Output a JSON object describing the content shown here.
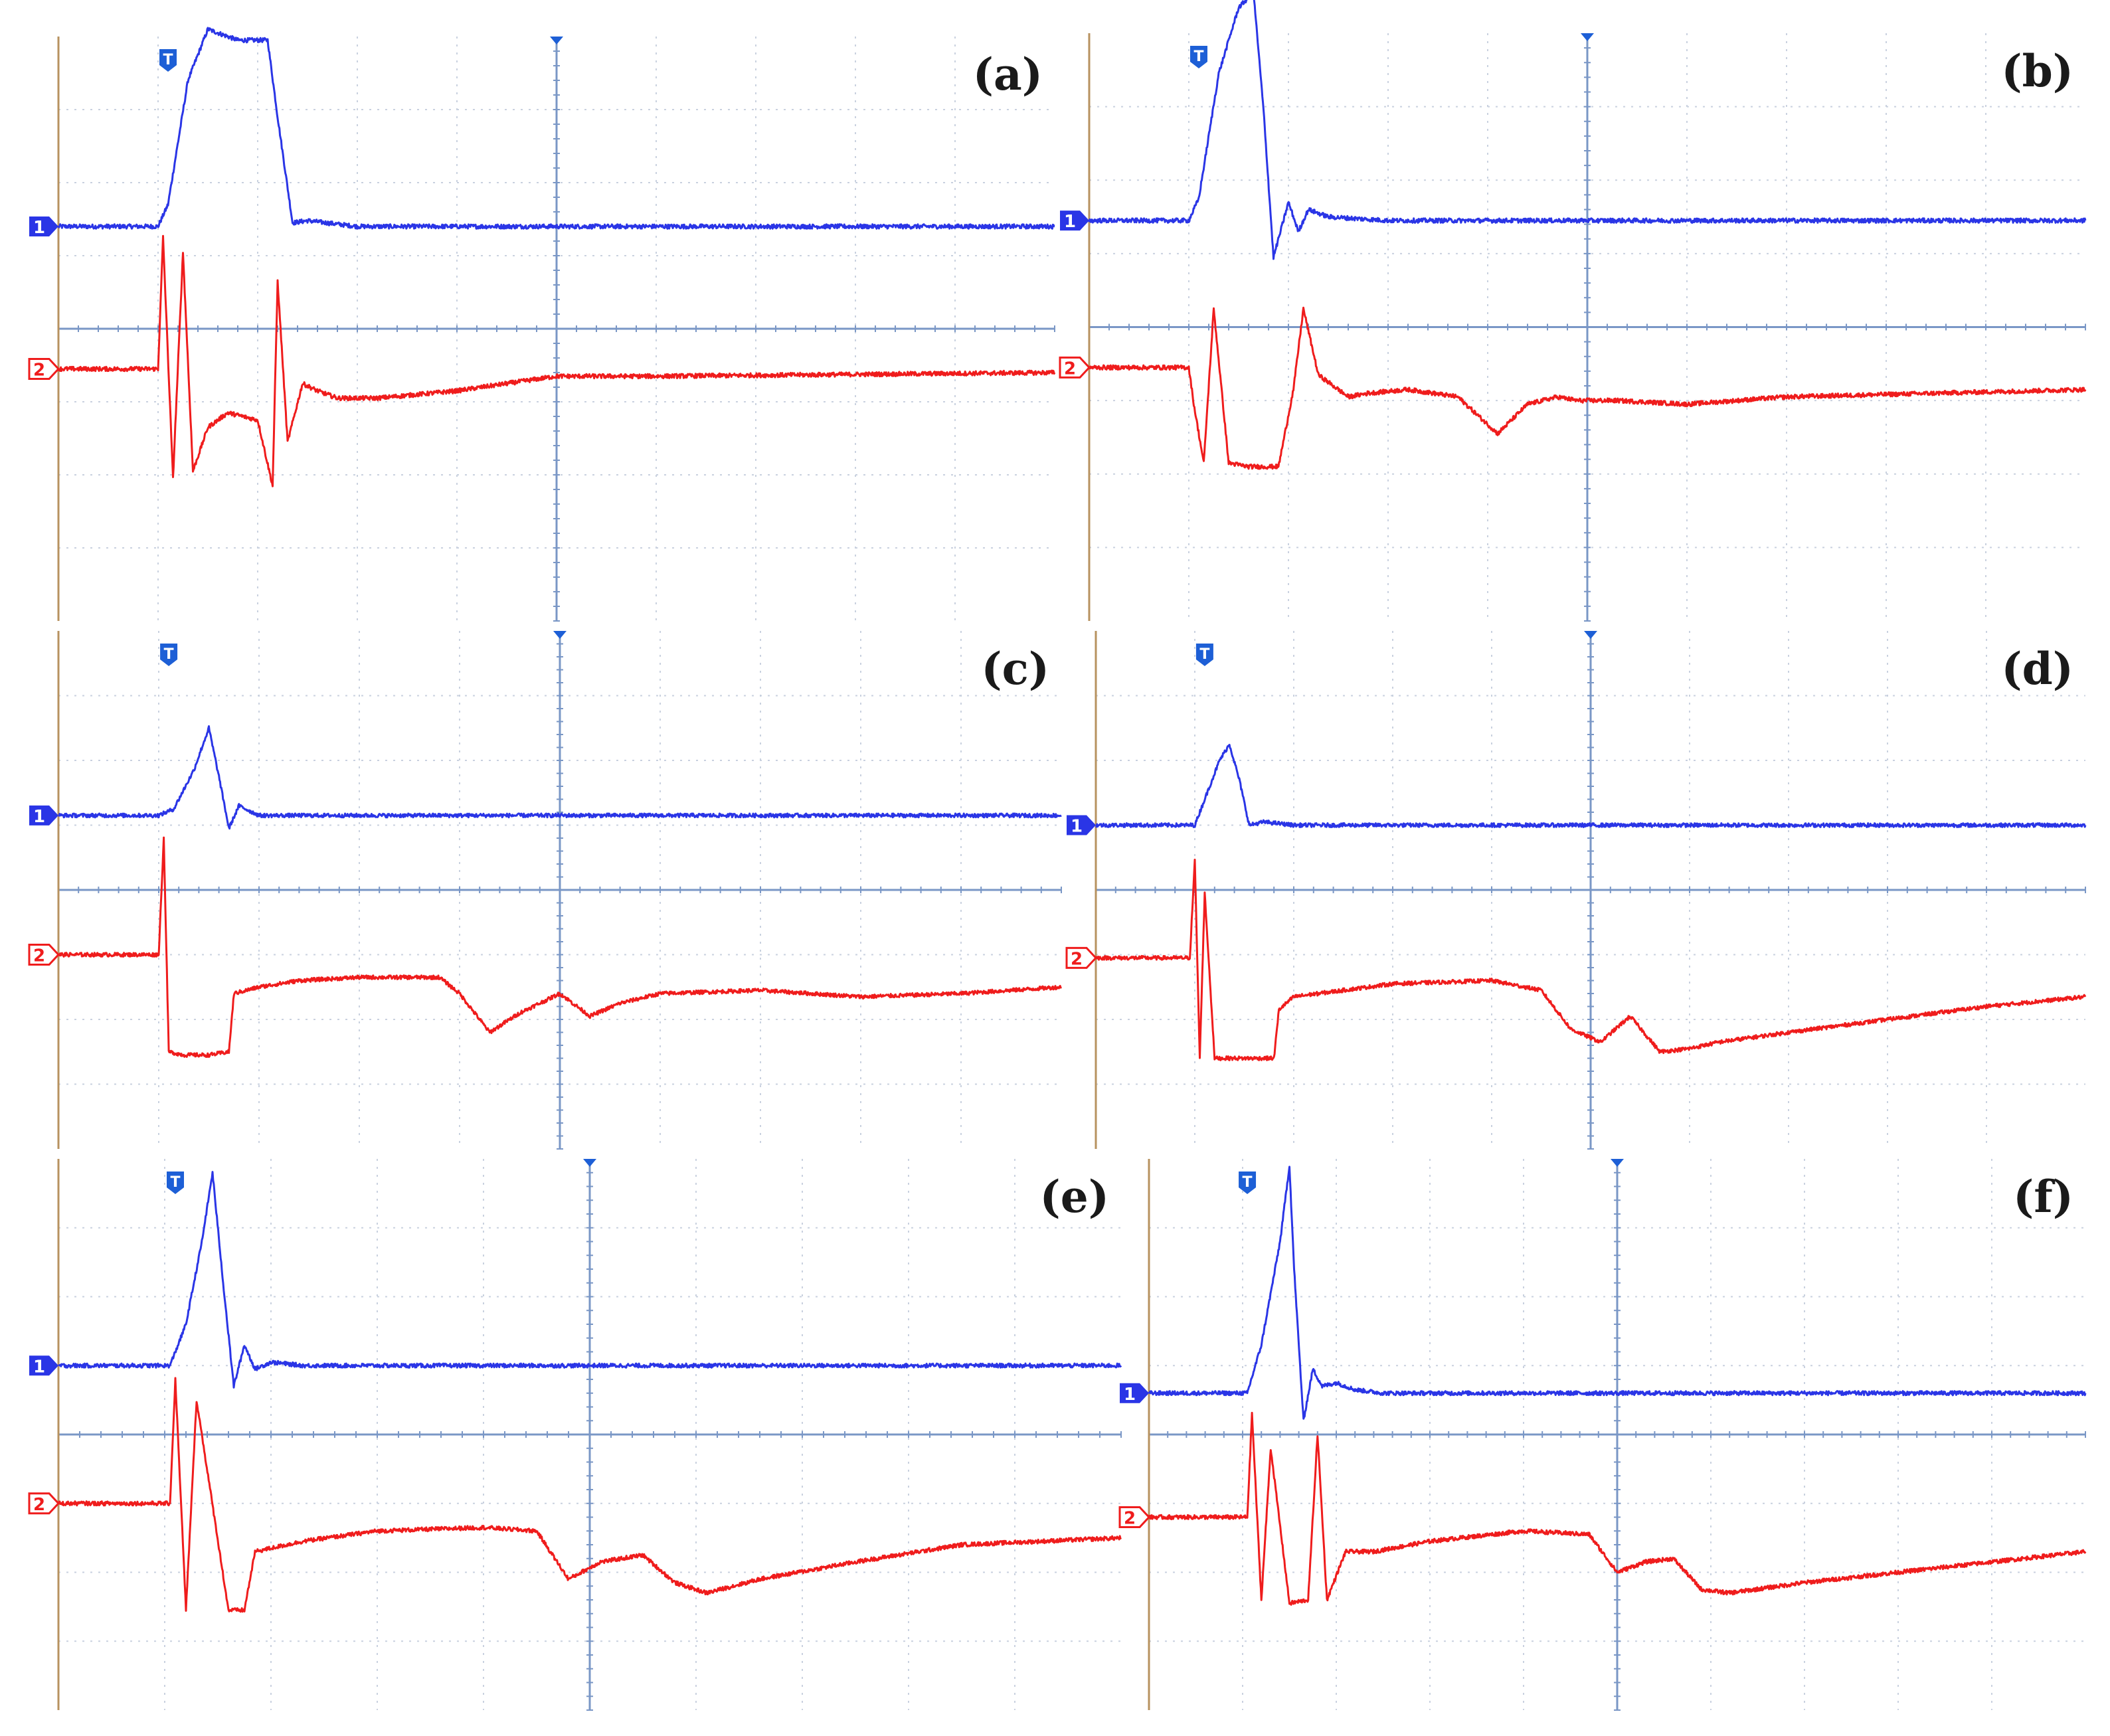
{
  "figure": {
    "colors": {
      "grid": "#c9d1df",
      "center_axis": "#7a97c6",
      "left_axis": "#b7925f",
      "channel1": "#2a35e6",
      "channel1_light": "#8a90f2",
      "channel2": "#ef1c1c",
      "channel2_light": "#f6a0a0",
      "trigger_marker": "#1d5fd6",
      "label": "#1a1a1a"
    },
    "markers": {
      "trigger": "T",
      "channel1": "1",
      "channel2": "2"
    }
  },
  "chart_data": [
    {
      "type": "line",
      "title": "(a)",
      "xlim": [
        0,
        10
      ],
      "ylim": [
        -4,
        4
      ],
      "channel1_offset": 1.4,
      "channel2_offset": -0.55,
      "series": [
        {
          "channel": "1",
          "x": [
            0,
            1.0,
            1.1,
            1.3,
            1.5,
            1.8,
            2.1,
            2.2,
            2.35,
            2.5,
            3.0,
            10
          ],
          "y": [
            0,
            0,
            0.3,
            2.0,
            2.7,
            2.55,
            2.55,
            1.5,
            0.05,
            0.08,
            0,
            0
          ]
        },
        {
          "channel": "2",
          "x": [
            0,
            1.0,
            1.05,
            1.15,
            1.25,
            1.35,
            1.5,
            1.7,
            2.0,
            2.15,
            2.2,
            2.3,
            2.45,
            2.6,
            2.8,
            3.2,
            4.0,
            5.0,
            6.0,
            10
          ],
          "y": [
            0,
            0,
            1.8,
            -1.5,
            1.6,
            -1.4,
            -0.8,
            -0.6,
            -0.7,
            -1.6,
            1.2,
            -1.0,
            -0.2,
            -0.3,
            -0.4,
            -0.4,
            -0.3,
            -0.1,
            -0.1,
            -0.05
          ]
        }
      ]
    },
    {
      "type": "line",
      "title": "(b)",
      "xlim": [
        0,
        10
      ],
      "ylim": [
        -4,
        4
      ],
      "channel1_offset": 1.45,
      "channel2_offset": -0.55,
      "series": [
        {
          "channel": "1",
          "x": [
            0,
            1.0,
            1.1,
            1.3,
            1.5,
            1.65,
            1.75,
            1.85,
            2.0,
            2.1,
            2.2,
            2.4,
            3.0,
            10
          ],
          "y": [
            0,
            0,
            0.3,
            2.0,
            2.9,
            3.1,
            1.5,
            -0.5,
            0.25,
            -0.15,
            0.15,
            0.05,
            0,
            0
          ]
        },
        {
          "channel": "2",
          "x": [
            0,
            1.0,
            1.05,
            1.15,
            1.25,
            1.4,
            1.6,
            1.9,
            2.05,
            2.15,
            2.3,
            2.6,
            2.8,
            3.2,
            3.7,
            4.1,
            4.4,
            4.7,
            4.9,
            5.3,
            6.0,
            7.0,
            10
          ],
          "y": [
            0,
            0,
            -0.5,
            -1.3,
            0.8,
            -1.3,
            -1.35,
            -1.35,
            -0.3,
            0.8,
            -0.1,
            -0.4,
            -0.35,
            -0.3,
            -0.4,
            -0.9,
            -0.5,
            -0.4,
            -0.45,
            -0.45,
            -0.5,
            -0.4,
            -0.3
          ]
        }
      ]
    },
    {
      "type": "line",
      "title": "(c)",
      "xlim": [
        0,
        10
      ],
      "ylim": [
        -4,
        4
      ],
      "channel1_offset": 1.15,
      "channel2_offset": -1.0,
      "series": [
        {
          "channel": "1",
          "x": [
            0,
            1.0,
            1.15,
            1.35,
            1.5,
            1.6,
            1.7,
            1.8,
            2.0,
            10
          ],
          "y": [
            0,
            0,
            0.1,
            0.7,
            1.35,
            0.6,
            -0.2,
            0.15,
            0,
            0
          ]
        },
        {
          "channel": "2",
          "x": [
            0,
            1.0,
            1.05,
            1.1,
            1.25,
            1.5,
            1.7,
            1.75,
            2.0,
            2.4,
            3.0,
            3.8,
            4.0,
            4.3,
            4.6,
            5.0,
            5.3,
            5.6,
            6.0,
            7.0,
            8.0,
            9.0,
            10
          ],
          "y": [
            0,
            0,
            1.8,
            -1.5,
            -1.55,
            -1.55,
            -1.5,
            -0.6,
            -0.5,
            -0.4,
            -0.35,
            -0.35,
            -0.6,
            -1.2,
            -0.9,
            -0.6,
            -0.95,
            -0.75,
            -0.6,
            -0.55,
            -0.65,
            -0.6,
            -0.5
          ]
        }
      ]
    },
    {
      "type": "line",
      "title": "(d)",
      "xlim": [
        0,
        10
      ],
      "ylim": [
        -4,
        4
      ],
      "channel1_offset": 1.0,
      "channel2_offset": -1.05,
      "series": [
        {
          "channel": "1",
          "x": [
            0,
            1.0,
            1.1,
            1.25,
            1.35,
            1.45,
            1.55,
            1.7,
            2.0,
            10
          ],
          "y": [
            0,
            0,
            0.4,
            1.0,
            1.25,
            0.7,
            0,
            0.05,
            0,
            0
          ]
        },
        {
          "channel": "2",
          "x": [
            0,
            0.95,
            1.0,
            1.05,
            1.1,
            1.2,
            1.5,
            1.8,
            1.85,
            2.0,
            3.0,
            4.0,
            4.5,
            4.8,
            5.1,
            5.4,
            5.7,
            6.0,
            6.3,
            7.0,
            8.0,
            9.0,
            10
          ],
          "y": [
            0,
            0,
            1.5,
            -1.55,
            1.0,
            -1.55,
            -1.55,
            -1.55,
            -0.8,
            -0.6,
            -0.4,
            -0.35,
            -0.5,
            -1.1,
            -1.3,
            -0.9,
            -1.45,
            -1.4,
            -1.3,
            -1.15,
            -0.95,
            -0.75,
            -0.6
          ]
        }
      ]
    },
    {
      "type": "line",
      "title": "(e)",
      "xlim": [
        0,
        10
      ],
      "ylim": [
        -4,
        4
      ],
      "channel1_offset": 1.0,
      "channel2_offset": -1.0,
      "series": [
        {
          "channel": "1",
          "x": [
            0,
            1.05,
            1.2,
            1.35,
            1.45,
            1.55,
            1.65,
            1.75,
            1.85,
            2.0,
            2.3,
            10
          ],
          "y": [
            0,
            0,
            0.6,
            1.8,
            2.8,
            1.2,
            -0.3,
            0.3,
            -0.05,
            0.05,
            0,
            0
          ]
        },
        {
          "channel": "2",
          "x": [
            0,
            1.05,
            1.1,
            1.2,
            1.3,
            1.6,
            1.75,
            1.85,
            2.3,
            3.0,
            4.0,
            4.5,
            4.8,
            5.1,
            5.5,
            5.8,
            6.1,
            6.6,
            7.5,
            8.5,
            10
          ],
          "y": [
            0,
            0,
            1.8,
            -1.55,
            1.5,
            -1.55,
            -1.55,
            -0.7,
            -0.55,
            -0.4,
            -0.35,
            -0.4,
            -1.1,
            -0.85,
            -0.75,
            -1.15,
            -1.3,
            -1.1,
            -0.85,
            -0.6,
            -0.5
          ]
        }
      ]
    },
    {
      "type": "line",
      "title": "(f)",
      "xlim": [
        0,
        10
      ],
      "ylim": [
        -4,
        4
      ],
      "channel1_offset": 0.6,
      "channel2_offset": -1.2,
      "series": [
        {
          "channel": "1",
          "x": [
            0,
            1.05,
            1.2,
            1.4,
            1.5,
            1.55,
            1.65,
            1.75,
            1.85,
            2.0,
            2.2,
            2.5,
            10
          ],
          "y": [
            0,
            0,
            0.7,
            2.2,
            3.3,
            1.8,
            -0.4,
            0.35,
            0.1,
            0.15,
            0.05,
            0,
            0
          ]
        },
        {
          "channel": "2",
          "x": [
            0,
            1.05,
            1.1,
            1.2,
            1.3,
            1.5,
            1.7,
            1.8,
            1.9,
            2.1,
            2.4,
            3.0,
            4.0,
            4.7,
            5.0,
            5.3,
            5.6,
            5.9,
            6.2,
            7.0,
            8.0,
            9.0,
            10
          ],
          "y": [
            0,
            0,
            1.5,
            -1.2,
            1.0,
            -1.25,
            -1.2,
            1.2,
            -1.2,
            -0.5,
            -0.5,
            -0.35,
            -0.2,
            -0.25,
            -0.8,
            -0.65,
            -0.6,
            -1.05,
            -1.1,
            -0.95,
            -0.8,
            -0.65,
            -0.5
          ]
        }
      ]
    }
  ]
}
